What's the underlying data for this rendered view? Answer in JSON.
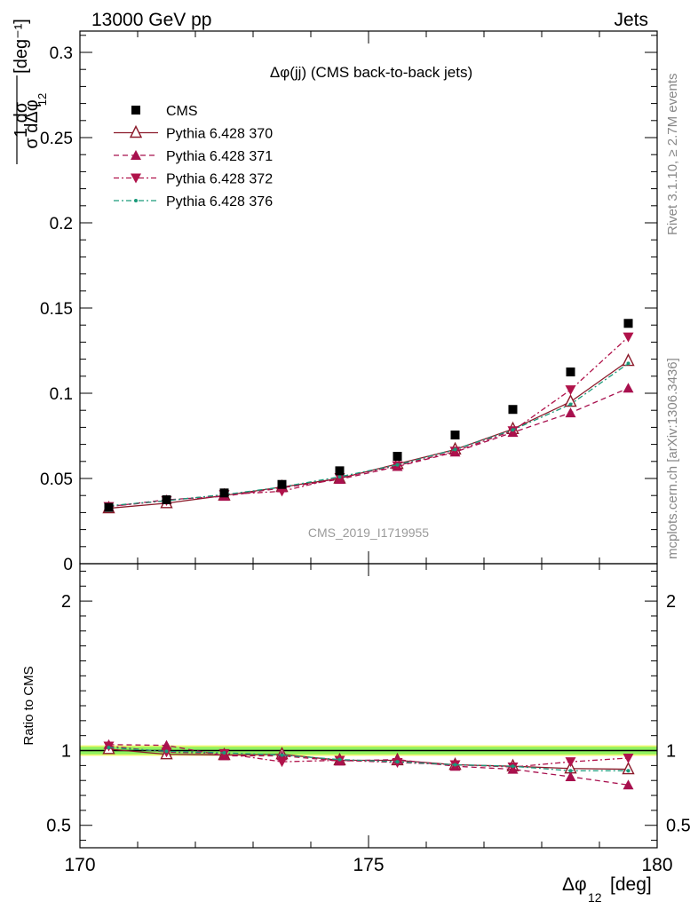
{
  "header": {
    "left": "13000 GeV pp",
    "right": "Jets",
    "plot_title": "Δφ(jj) (CMS back-to-back jets)",
    "side_top": "Rivet 3.1.10, ≥ 2.7M events",
    "side_bottom": "mcplots.cern.ch [arXiv:1306.3436]",
    "watermark": "CMS_2019_I1719955",
    "xlabel_main": "Δφ",
    "xlabel_sub": "12",
    "xlabel_unit": "[deg]",
    "ylabel_unit": "[deg⁻¹]",
    "ratio_ylabel": "Ratio to CMS"
  },
  "colors": {
    "cms": "#000000",
    "p370": "#8b1a2a",
    "p371": "#a8104e",
    "p372": "#b0124a",
    "p376": "#1a9a7a",
    "band_inner": "#8ff060",
    "band_outer": "#f0f870"
  },
  "chart_data": [
    {
      "type": "scatter",
      "panel": "main",
      "x": [
        170.5,
        171.5,
        172.5,
        173.5,
        174.5,
        175.5,
        176.5,
        177.5,
        178.5,
        179.5
      ],
      "xlim": [
        170,
        180
      ],
      "ylim": [
        0,
        0.3125
      ],
      "yticks": [
        0,
        0.05,
        0.1,
        0.15,
        0.2,
        0.25,
        0.3
      ],
      "ytick_labels": [
        "0",
        "0.05",
        "0.1",
        "0.15",
        "0.2",
        "0.25",
        "0.3"
      ],
      "xticks": [
        170,
        175,
        180
      ],
      "xtick_labels": [
        "170",
        "175",
        "180"
      ],
      "legend_position": "top-left",
      "series": [
        {
          "name": "CMS",
          "marker": "square",
          "style": "none",
          "values": [
            0.033,
            0.0375,
            0.0415,
            0.0465,
            0.0545,
            0.063,
            0.0755,
            0.0905,
            0.1125,
            0.141
          ]
        },
        {
          "name": "Pythia 6.428 370",
          "marker": "triangle-up-open",
          "style": "solid",
          "values": [
            0.0325,
            0.0355,
            0.04,
            0.045,
            0.05,
            0.0585,
            0.067,
            0.079,
            0.095,
            0.119
          ]
        },
        {
          "name": "Pythia 6.428 371",
          "marker": "triangle-up",
          "style": "dashed",
          "values": [
            0.0335,
            0.0375,
            0.0395,
            0.0445,
            0.0495,
            0.057,
            0.0655,
            0.077,
            0.0885,
            0.103
          ]
        },
        {
          "name": "Pythia 6.428 372",
          "marker": "triangle-down",
          "style": "dashdot",
          "values": [
            0.0335,
            0.037,
            0.0405,
            0.0425,
            0.0505,
            0.0575,
            0.066,
            0.078,
            0.102,
            0.133
          ]
        },
        {
          "name": "Pythia 6.428 376",
          "marker": "dot",
          "style": "dashdot",
          "values": [
            0.034,
            0.037,
            0.0405,
            0.045,
            0.051,
            0.058,
            0.067,
            0.0785,
            0.0935,
            0.1175
          ]
        }
      ]
    },
    {
      "type": "scatter",
      "panel": "ratio",
      "x": [
        170.5,
        171.5,
        172.5,
        173.5,
        174.5,
        175.5,
        176.5,
        177.5,
        178.5,
        179.5
      ],
      "xlim": [
        170,
        180
      ],
      "ylim": [
        0.35,
        2.25
      ],
      "yticks": [
        0.5,
        1,
        2
      ],
      "ytick_labels": [
        "0.5",
        "1",
        "2"
      ],
      "reference_band": [
        0.975,
        1.025
      ],
      "series": [
        {
          "name": "Pythia 6.428 370",
          "marker": "triangle-up-open",
          "style": "solid",
          "values": [
            1.01,
            0.975,
            0.97,
            0.975,
            0.935,
            0.935,
            0.905,
            0.895,
            0.88,
            0.875
          ]
        },
        {
          "name": "Pythia 6.428 371",
          "marker": "triangle-up",
          "style": "dashed",
          "values": [
            1.04,
            1.035,
            0.965,
            0.965,
            0.93,
            0.94,
            0.895,
            0.875,
            0.825,
            0.77
          ]
        },
        {
          "name": "Pythia 6.428 372",
          "marker": "triangle-down",
          "style": "dashdot",
          "values": [
            1.03,
            0.99,
            0.98,
            0.925,
            0.935,
            0.92,
            0.905,
            0.89,
            0.925,
            0.95
          ]
        },
        {
          "name": "Pythia 6.428 376",
          "marker": "dot",
          "style": "dashdot",
          "values": [
            1.02,
            0.995,
            0.985,
            0.97,
            0.94,
            0.925,
            0.905,
            0.895,
            0.865,
            0.865
          ]
        }
      ]
    }
  ]
}
